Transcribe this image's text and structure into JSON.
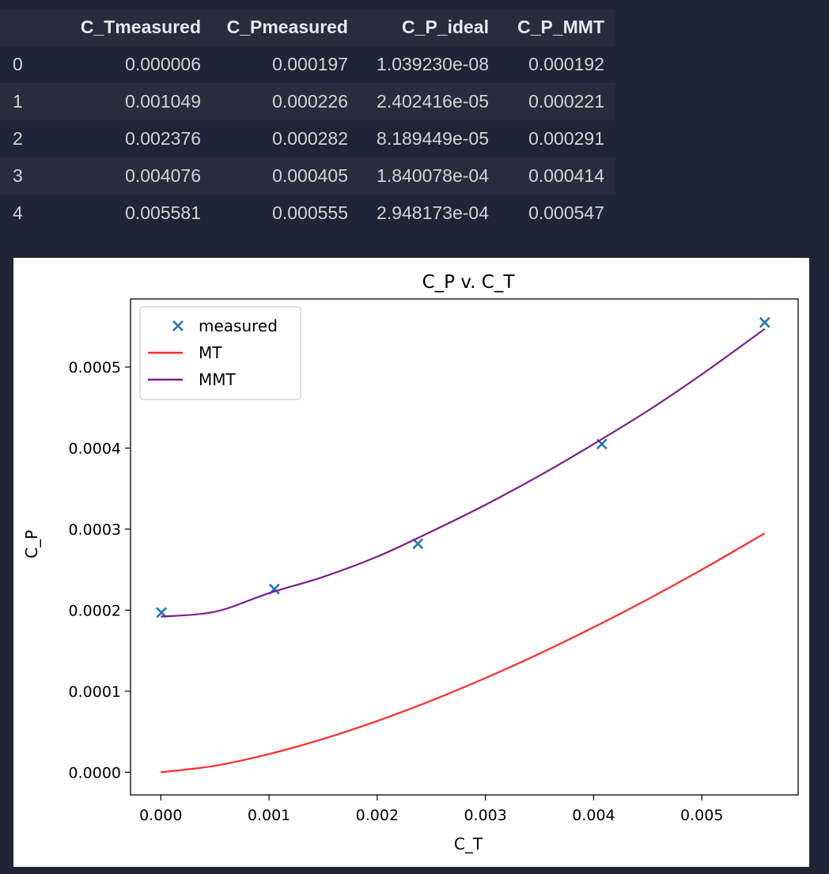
{
  "table": {
    "columns": [
      "",
      "C_Tmeasured",
      "C_Pmeasured",
      "C_P_ideal",
      "C_P_MMT"
    ],
    "rows": [
      [
        "0",
        "0.000006",
        "0.000197",
        "1.039230e-08",
        "0.000192"
      ],
      [
        "1",
        "0.001049",
        "0.000226",
        "2.402416e-05",
        "0.000221"
      ],
      [
        "2",
        "0.002376",
        "0.000282",
        "8.189449e-05",
        "0.000291"
      ],
      [
        "3",
        "0.004076",
        "0.000405",
        "1.840078e-04",
        "0.000414"
      ],
      [
        "4",
        "0.005581",
        "0.000555",
        "2.948173e-04",
        "0.000547"
      ]
    ]
  },
  "chart_data": {
    "type": "line",
    "title": "C_P v. C_T",
    "xlabel": "C_T",
    "ylabel": "C_P",
    "xlim": [
      -0.00028,
      0.00589
    ],
    "ylim": [
      -2.8e-05,
      0.000584
    ],
    "xticks": [
      0.0,
      0.001,
      0.002,
      0.003,
      0.004,
      0.005
    ],
    "xtick_labels": [
      "0.000",
      "0.001",
      "0.002",
      "0.003",
      "0.004",
      "0.005"
    ],
    "yticks": [
      0.0,
      0.0001,
      0.0002,
      0.0003,
      0.0004,
      0.0005
    ],
    "ytick_labels": [
      "0.0000",
      "0.0001",
      "0.0002",
      "0.0003",
      "0.0004",
      "0.0005"
    ],
    "legend_position": "upper-left",
    "series": [
      {
        "name": "measured",
        "kind": "scatter",
        "marker": "x",
        "color": "#1f77b4",
        "x": [
          6e-06,
          0.001049,
          0.002376,
          0.004076,
          0.005581
        ],
        "y": [
          0.000197,
          0.000226,
          0.000282,
          0.000405,
          0.000555
        ]
      },
      {
        "name": "MT",
        "kind": "line",
        "color": "#ff2b2b",
        "x": [
          0.0,
          0.0005,
          0.001,
          0.0015,
          0.002,
          0.0025,
          0.003,
          0.0035,
          0.004,
          0.0045,
          0.005,
          0.005581
        ],
        "y": [
          0.0,
          7.9e-06,
          2.24e-05,
          4.11e-05,
          6.32e-05,
          8.84e-05,
          0.0001162,
          0.0001464,
          0.0001789,
          0.0002134,
          0.00025,
          0.0002948
        ]
      },
      {
        "name": "MMT",
        "kind": "line",
        "color": "#7b1d8f",
        "x": [
          0.0,
          0.0005,
          0.001,
          0.0015,
          0.002,
          0.0025,
          0.003,
          0.0035,
          0.004,
          0.0045,
          0.005,
          0.005581
        ],
        "y": [
          0.000192,
          0.000198,
          0.000221,
          0.000241,
          0.000266,
          0.000297,
          0.00033,
          0.000366,
          0.000405,
          0.000446,
          0.000491,
          0.000547
        ]
      }
    ]
  }
}
